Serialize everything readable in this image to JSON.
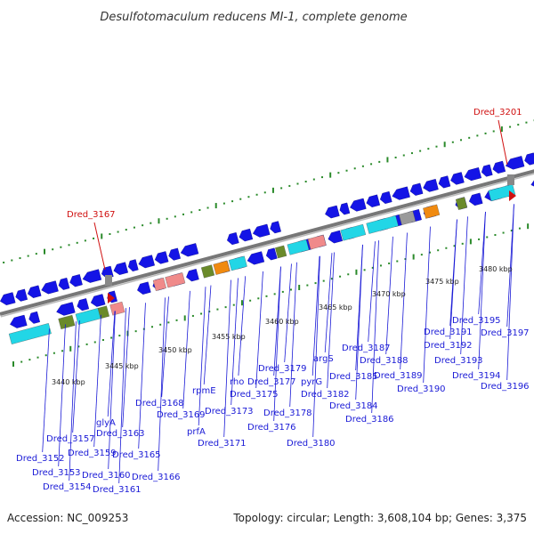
{
  "title": "Desulfotomaculum reducens MI-1, complete genome",
  "footer": {
    "accession": "Accession: NC_009253",
    "summary": "Topology: circular; Length: 3,608,104 bp; Genes: 3,375"
  },
  "scale_labels": [
    "3440 kbp",
    "3445 kbp",
    "3450 kbp",
    "3455 kbp",
    "3460 kbp",
    "3465 kbp",
    "3470 kbp",
    "3475 kbp",
    "3480 kbp"
  ],
  "highlight_genes": [
    "Dred_3167",
    "Dred_3201"
  ],
  "gene_labels": [
    "Dred_3152",
    "Dred_3153",
    "Dred_3154",
    "Dred_3157",
    "Dred_3159",
    "Dred_3160",
    "glyA",
    "Dred_3161",
    "Dred_3163",
    "Dred_3165",
    "Dred_3166",
    "Dred_3168",
    "Dred_3169",
    "prfA",
    "rpmE",
    "Dred_3171",
    "Dred_3173",
    "rho",
    "Dred_3175",
    "Dred_3176",
    "Dred_3177",
    "Dred_3178",
    "Dred_3179",
    "Dred_3180",
    "pyrG",
    "Dred_3182",
    "argS",
    "Dred_3184",
    "Dred_3185",
    "Dred_3186",
    "Dred_3187",
    "Dred_3188",
    "Dred_3189",
    "Dred_3190",
    "Dred_3191",
    "Dred_3192",
    "Dred_3193",
    "Dred_3194",
    "Dred_3195",
    "Dred_3196",
    "Dred_3197"
  ],
  "colors": {
    "gene_cds": "#1414e6",
    "label": "#1a1ad6",
    "highlight": "#d01010",
    "gc_dots": "#2a8a2a",
    "backbone": "#888888",
    "feature_cyan": "#22d6e6",
    "feature_green": "#6a8a2a",
    "feature_orange": "#f08a10",
    "feature_pink": "#f08a8a",
    "feature_gray": "#9a9a9a"
  }
}
